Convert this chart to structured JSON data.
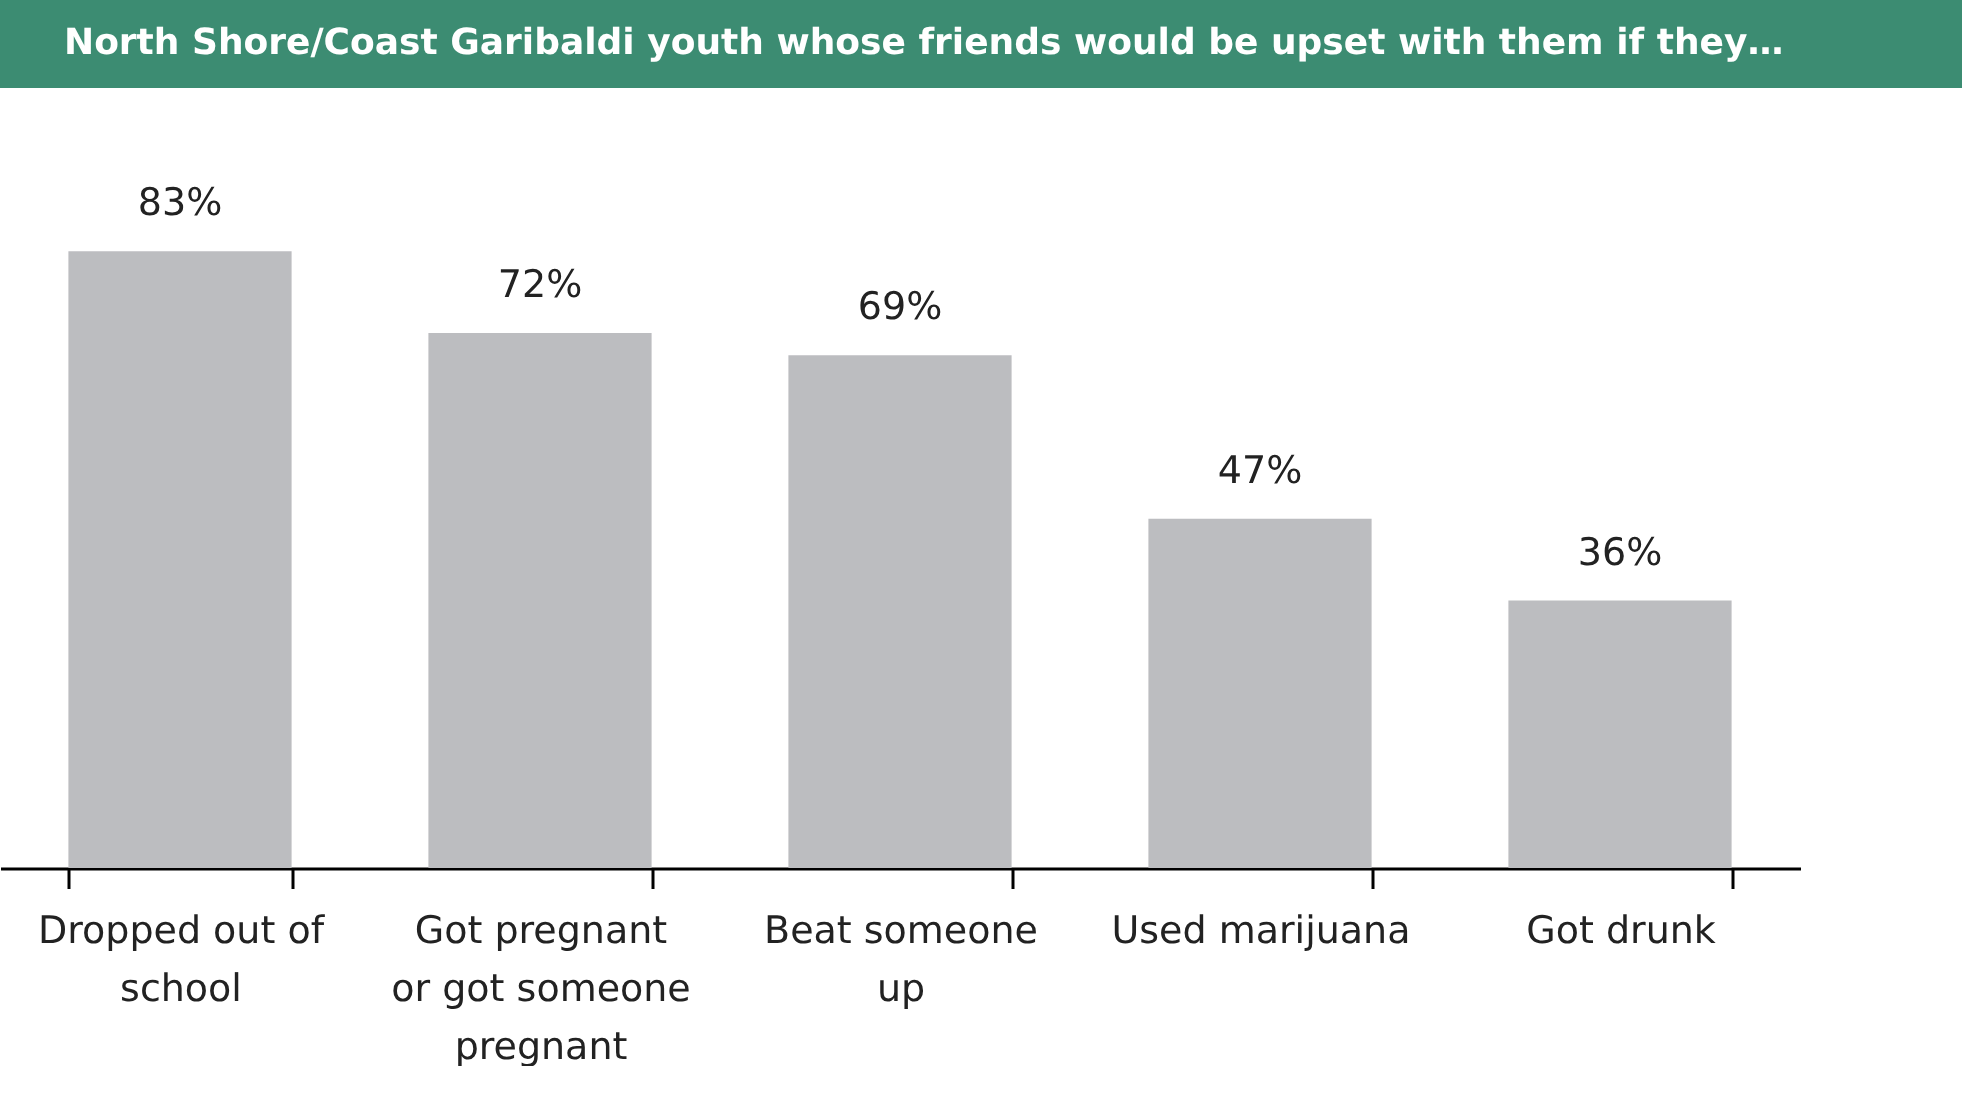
{
  "chart_data": {
    "type": "bar",
    "title": "North Shore/Coast Garibaldi youth whose friends would be upset with them if they…",
    "categories": [
      "Dropped out of school",
      "Got pregnant or got someone pregnant",
      "Beat someone up",
      "Used marijuana",
      "Got drunk"
    ],
    "values": [
      83,
      72,
      69,
      47,
      36
    ],
    "color": "#bcbdc0",
    "value_labels": [
      "83%",
      "72%",
      "69%",
      "47%",
      "36%"
    ],
    "grid": false
  }
}
